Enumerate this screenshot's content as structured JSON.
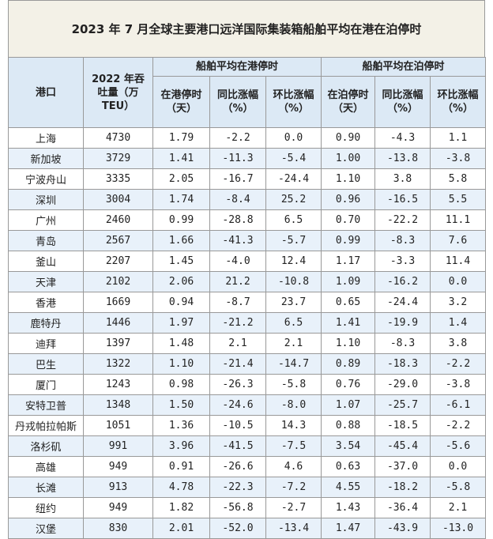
{
  "title": "2023 年 7 月全球主要港口远洋国际集装箱船舶平均在港在泊停时",
  "header": {
    "port": "港口",
    "throughput": "2022 年吞吐量（万 TEU）",
    "groups": [
      "船舶平均在港停时",
      "船舶平均在泊停时"
    ],
    "columns": [
      "在港停时（天）",
      "同比涨幅（%）",
      "环比涨幅（%）",
      "在泊停时（天）",
      "同比涨幅（%）",
      "环比涨幅（%）"
    ]
  },
  "rows": [
    [
      "上海",
      "4730",
      "1.79",
      "-2.2",
      "0.0",
      "0.90",
      "-4.3",
      "1.1"
    ],
    [
      "新加坡",
      "3729",
      "1.41",
      "-11.3",
      "-5.4",
      "1.00",
      "-13.8",
      "-3.8"
    ],
    [
      "宁波舟山",
      "3335",
      "2.05",
      "-16.7",
      "-24.4",
      "1.10",
      "3.8",
      "5.8"
    ],
    [
      "深圳",
      "3004",
      "1.74",
      "-8.4",
      "25.2",
      "0.96",
      "-16.5",
      "5.5"
    ],
    [
      "广州",
      "2460",
      "0.99",
      "-28.8",
      "6.5",
      "0.70",
      "-22.2",
      "11.1"
    ],
    [
      "青岛",
      "2567",
      "1.66",
      "-41.3",
      "-5.7",
      "0.99",
      "-8.3",
      "7.6"
    ],
    [
      "釜山",
      "2207",
      "1.45",
      "-4.0",
      "12.4",
      "1.17",
      "-3.3",
      "11.4"
    ],
    [
      "天津",
      "2102",
      "2.06",
      "21.2",
      "-10.8",
      "1.09",
      "-16.2",
      "0.0"
    ],
    [
      "香港",
      "1669",
      "0.94",
      "-8.7",
      "23.7",
      "0.65",
      "-24.4",
      "3.2"
    ],
    [
      "鹿特丹",
      "1446",
      "1.97",
      "-21.2",
      "6.5",
      "1.41",
      "-19.9",
      "1.4"
    ],
    [
      "迪拜",
      "1397",
      "1.48",
      "2.1",
      "2.1",
      "1.10",
      "-8.3",
      "3.8"
    ],
    [
      "巴生",
      "1322",
      "1.10",
      "-21.4",
      "-14.7",
      "0.89",
      "-18.3",
      "-2.2"
    ],
    [
      "厦门",
      "1243",
      "0.98",
      "-26.3",
      "-5.8",
      "0.76",
      "-29.0",
      "-3.8"
    ],
    [
      "安特卫普",
      "1348",
      "1.50",
      "-24.6",
      "-8.0",
      "1.07",
      "-25.7",
      "-6.1"
    ],
    [
      "丹戎帕拉帕斯",
      "1051",
      "1.36",
      "-10.5",
      "14.3",
      "0.88",
      "-18.5",
      "-2.2"
    ],
    [
      "洛杉矶",
      "991",
      "3.96",
      "-41.5",
      "-7.5",
      "3.54",
      "-45.4",
      "-5.6"
    ],
    [
      "高雄",
      "949",
      "0.91",
      "-26.6",
      "4.6",
      "0.63",
      "-37.0",
      "0.0"
    ],
    [
      "长滩",
      "913",
      "4.78",
      "-22.3",
      "-7.2",
      "4.55",
      "-18.2",
      "-5.8"
    ],
    [
      "纽约",
      "949",
      "1.82",
      "-56.8",
      "-2.7",
      "1.43",
      "-36.4",
      "2.1"
    ],
    [
      "汉堡",
      "830",
      "2.01",
      "-52.0",
      "-13.4",
      "1.47",
      "-43.9",
      "-13.0"
    ]
  ]
}
